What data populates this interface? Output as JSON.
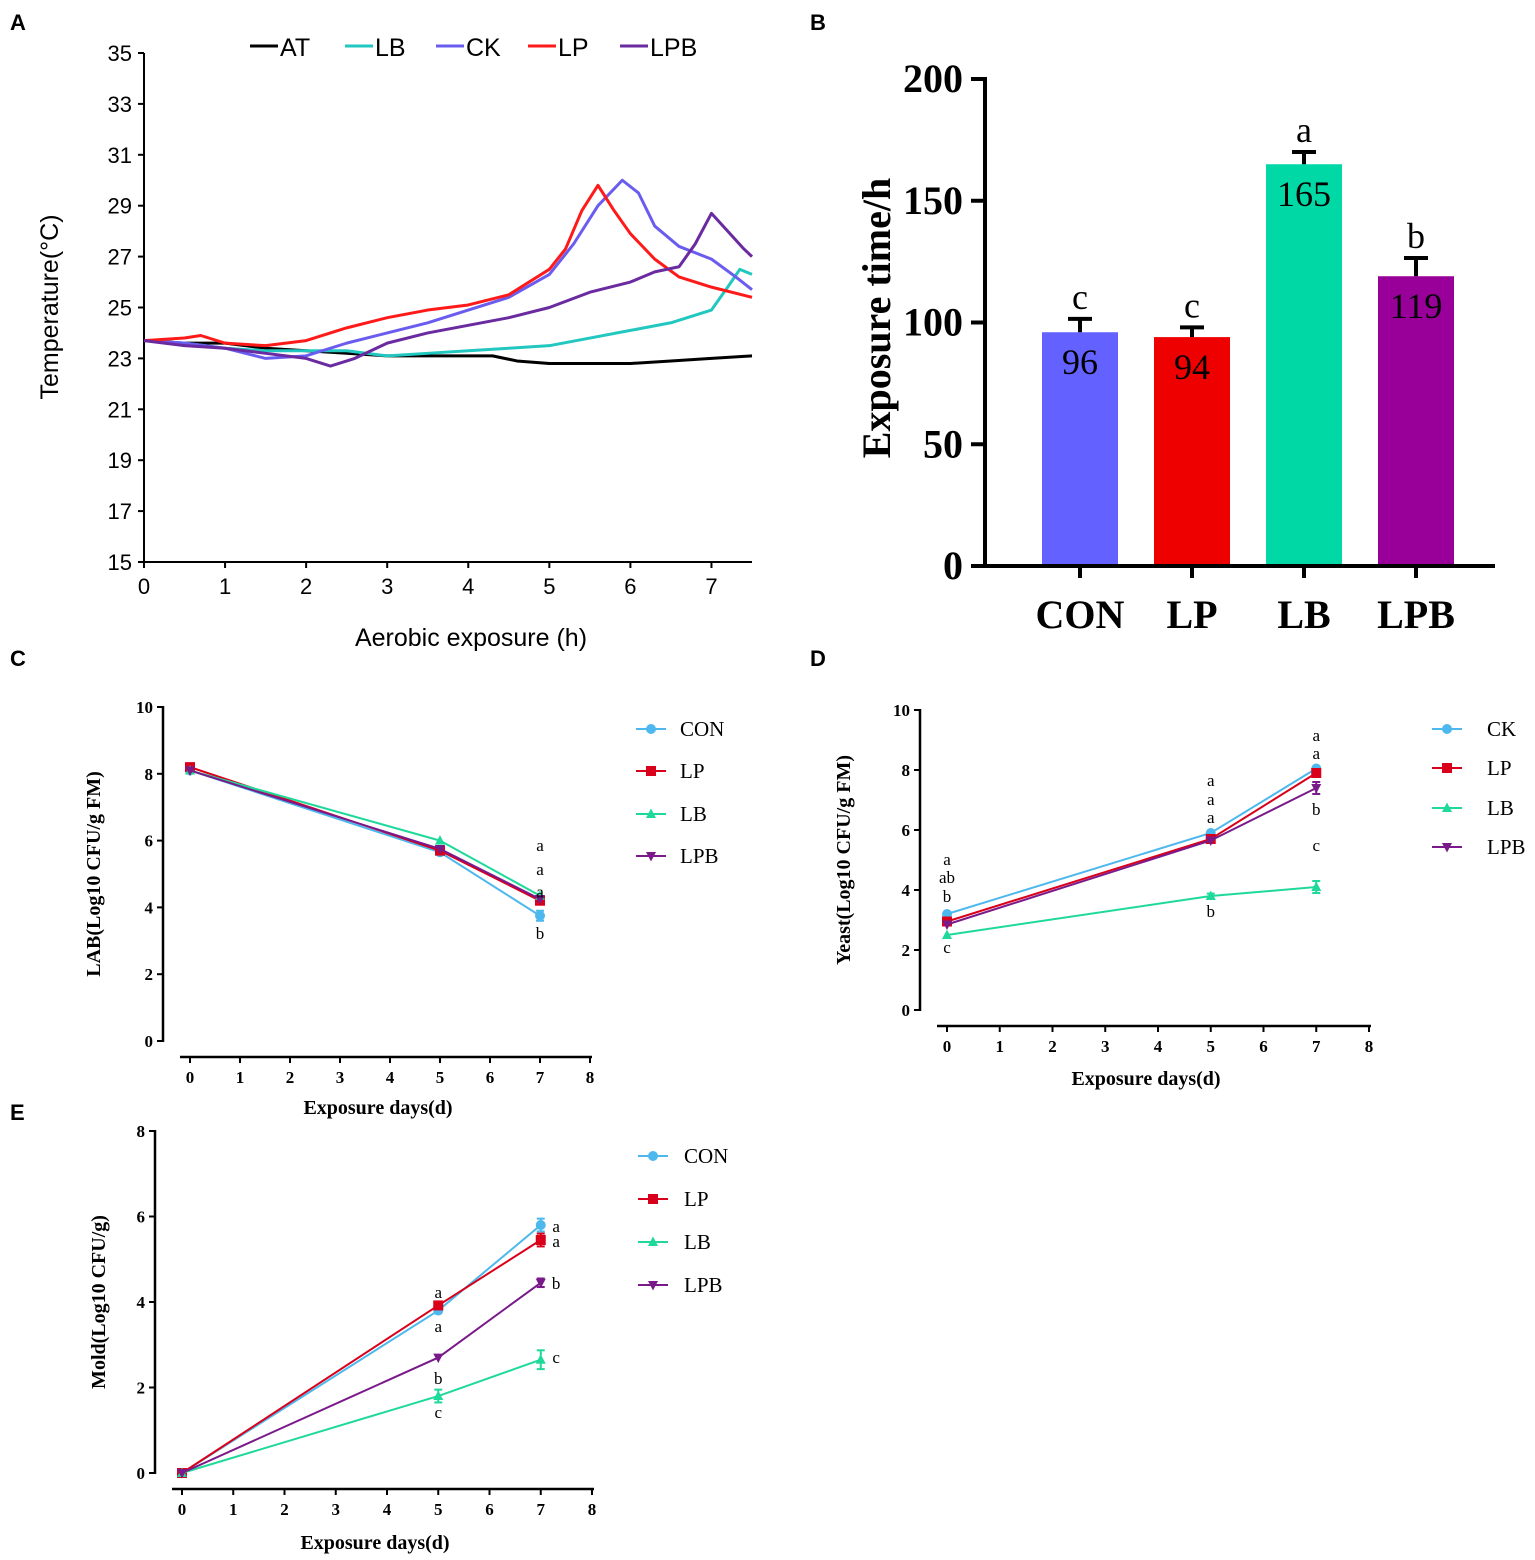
{
  "chart_data": [
    {
      "panel": "A",
      "type": "line",
      "xlabel": "Aerobic exposure (h)",
      "ylabel": "Temperature(°C)",
      "xlim": [
        0,
        7.5
      ],
      "ylim": [
        15,
        35
      ],
      "xticks": [
        0,
        1,
        2,
        3,
        4,
        5,
        6,
        7
      ],
      "yticks": [
        15,
        17,
        19,
        21,
        23,
        25,
        27,
        29,
        31,
        33,
        35
      ],
      "legend_position": "top",
      "grid": false,
      "series": [
        {
          "name": "AT",
          "color": "#000000",
          "x": [
            0,
            0.5,
            1,
            1.5,
            2,
            2.5,
            3,
            3.5,
            4,
            4.3,
            4.6,
            5,
            5.5,
            6,
            6.5,
            7,
            7.5
          ],
          "y": [
            23.7,
            23.6,
            23.6,
            23.4,
            23.3,
            23.2,
            23.1,
            23.1,
            23.1,
            23.1,
            22.9,
            22.8,
            22.8,
            22.8,
            22.9,
            23.0,
            23.1
          ]
        },
        {
          "name": "LB",
          "color": "#22c8c0",
          "x": [
            0,
            0.5,
            1,
            1.5,
            2,
            2.5,
            3,
            3.5,
            4,
            4.5,
            5,
            5.5,
            6,
            6.5,
            7,
            7.2,
            7.35,
            7.5
          ],
          "y": [
            23.7,
            23.6,
            23.4,
            23.3,
            23.3,
            23.3,
            23.1,
            23.2,
            23.3,
            23.4,
            23.5,
            23.8,
            24.1,
            24.4,
            24.9,
            25.8,
            26.5,
            26.3
          ]
        },
        {
          "name": "CK",
          "color": "#6b5cf0",
          "x": [
            0,
            0.5,
            1,
            1.5,
            2,
            2.5,
            3,
            3.5,
            4,
            4.5,
            5,
            5.3,
            5.6,
            5.9,
            6.1,
            6.3,
            6.6,
            7,
            7.3,
            7.5
          ],
          "y": [
            23.7,
            23.6,
            23.4,
            23.0,
            23.1,
            23.6,
            24.0,
            24.4,
            24.9,
            25.4,
            26.3,
            27.5,
            29.0,
            30.0,
            29.5,
            28.2,
            27.4,
            26.9,
            26.2,
            25.7
          ]
        },
        {
          "name": "LP",
          "color": "#ff1a1a",
          "x": [
            0,
            0.5,
            0.7,
            1,
            1.5,
            2,
            2.5,
            3,
            3.5,
            4,
            4.5,
            5,
            5.2,
            5.4,
            5.6,
            5.8,
            6,
            6.3,
            6.6,
            7,
            7.5
          ],
          "y": [
            23.7,
            23.8,
            23.9,
            23.6,
            23.5,
            23.7,
            24.2,
            24.6,
            24.9,
            25.1,
            25.5,
            26.5,
            27.3,
            28.8,
            29.8,
            28.8,
            27.9,
            26.9,
            26.2,
            25.8,
            25.4
          ]
        },
        {
          "name": "LPB",
          "color": "#6a2aa0",
          "x": [
            0,
            0.5,
            1,
            1.5,
            2,
            2.3,
            2.6,
            3,
            3.5,
            4,
            4.5,
            5,
            5.5,
            6,
            6.3,
            6.6,
            6.8,
            7,
            7.2,
            7.4,
            7.5
          ],
          "y": [
            23.7,
            23.5,
            23.4,
            23.2,
            23.0,
            22.7,
            23.0,
            23.6,
            24.0,
            24.3,
            24.6,
            25.0,
            25.6,
            26.0,
            26.4,
            26.6,
            27.5,
            28.7,
            28.0,
            27.3,
            27.0
          ]
        }
      ]
    },
    {
      "panel": "B",
      "type": "bar",
      "ylabel": "Exposure time/h",
      "ylim": [
        0,
        200
      ],
      "yticks": [
        0,
        50,
        100,
        150,
        200
      ],
      "categories": [
        "CON",
        "LP",
        "LB",
        "LPB"
      ],
      "values": [
        96,
        94,
        165,
        119
      ],
      "value_labels": [
        "96",
        "94",
        "165",
        "119"
      ],
      "errors": [
        5.5,
        4,
        5,
        7.5
      ],
      "letters": [
        "c",
        "c",
        "a",
        "b"
      ],
      "colors": [
        "#6361ff",
        "#ee0000",
        "#00d9a6",
        "#990099"
      ]
    },
    {
      "panel": "C",
      "type": "line",
      "xlabel": "Exposure days(d)",
      "ylabel": "LAB(Log10 CFU/g FM)",
      "xlim": [
        0,
        8
      ],
      "ylim": [
        0,
        10
      ],
      "xticks": [
        0,
        1,
        2,
        3,
        4,
        5,
        6,
        7,
        8
      ],
      "yticks": [
        0,
        2,
        4,
        6,
        8,
        10
      ],
      "legend_position": "right",
      "series": [
        {
          "name": "CON",
          "color": "#4db8ee",
          "marker": "circle",
          "x": [
            0,
            5,
            7
          ],
          "y": [
            8.1,
            5.65,
            3.75
          ],
          "err": [
            0.05,
            0.05,
            0.15
          ]
        },
        {
          "name": "LP",
          "color": "#d9001b",
          "marker": "square",
          "x": [
            0,
            5,
            7
          ],
          "y": [
            8.2,
            5.7,
            4.2
          ],
          "err": [
            0.05,
            0.05,
            0.08
          ]
        },
        {
          "name": "LB",
          "color": "#1ed99a",
          "marker": "triangle-up",
          "x": [
            0,
            5,
            7
          ],
          "y": [
            8.1,
            6.0,
            4.35
          ],
          "err": [
            0.05,
            0.05,
            0.05
          ]
        },
        {
          "name": "LPB",
          "color": "#7a1a8a",
          "marker": "triangle-down",
          "x": [
            0,
            5,
            7
          ],
          "y": [
            8.1,
            5.75,
            4.25
          ],
          "err": [
            0.05,
            0.05,
            0.05
          ]
        }
      ],
      "annotations": [
        {
          "x": 7,
          "y": 5.84,
          "text": "a"
        },
        {
          "x": 7,
          "y": 5.12,
          "text": "a"
        },
        {
          "x": 7,
          "y": 4.45,
          "text": "a"
        },
        {
          "x": 7,
          "y": 3.2,
          "text": "b"
        }
      ]
    },
    {
      "panel": "D",
      "type": "line",
      "xlabel": "Exposure days(d)",
      "ylabel": "Yeast(Log10 CFU/g FM)",
      "xlim": [
        0,
        8
      ],
      "ylim": [
        0,
        10
      ],
      "xticks": [
        0,
        1,
        2,
        3,
        4,
        5,
        6,
        7,
        8
      ],
      "yticks": [
        0,
        2,
        4,
        6,
        8,
        10
      ],
      "legend_position": "right",
      "series": [
        {
          "name": "CK",
          "color": "#4db8ee",
          "marker": "circle",
          "x": [
            0,
            5,
            7
          ],
          "y": [
            3.2,
            5.9,
            8.05
          ],
          "err": [
            0.05,
            0.05,
            0.05
          ]
        },
        {
          "name": "LP",
          "color": "#d9001b",
          "marker": "square",
          "x": [
            0,
            5,
            7
          ],
          "y": [
            2.95,
            5.7,
            7.9
          ],
          "err": [
            0.05,
            0.05,
            0.08
          ]
        },
        {
          "name": "LB",
          "color": "#1ed99a",
          "marker": "triangle-up",
          "x": [
            0,
            5,
            7
          ],
          "y": [
            2.5,
            3.8,
            4.1
          ],
          "err": [
            0.05,
            0.08,
            0.2
          ]
        },
        {
          "name": "LPB",
          "color": "#7a1a8a",
          "marker": "triangle-down",
          "x": [
            0,
            5,
            7
          ],
          "y": [
            2.85,
            5.65,
            7.4
          ],
          "err": [
            0.05,
            0.05,
            0.2
          ]
        }
      ],
      "annotations": [
        {
          "x": 0,
          "y": 5.0,
          "text": "a"
        },
        {
          "x": 0,
          "y": 4.4,
          "text": "ab"
        },
        {
          "x": 0,
          "y": 3.77,
          "text": "b"
        },
        {
          "x": 0,
          "y": 2.07,
          "text": "c"
        },
        {
          "x": 5,
          "y": 7.63,
          "text": "a"
        },
        {
          "x": 5,
          "y": 7.0,
          "text": "a"
        },
        {
          "x": 5,
          "y": 6.4,
          "text": "a"
        },
        {
          "x": 5,
          "y": 3.27,
          "text": "b"
        },
        {
          "x": 7,
          "y": 9.13,
          "text": "a"
        },
        {
          "x": 7,
          "y": 8.53,
          "text": "a"
        },
        {
          "x": 7,
          "y": 6.67,
          "text": "b"
        },
        {
          "x": 7,
          "y": 5.47,
          "text": "c"
        }
      ]
    },
    {
      "panel": "E",
      "type": "line",
      "xlabel": "Exposure days(d)",
      "ylabel": "Mold(Log10 CFU/g)",
      "xlim": [
        0,
        8
      ],
      "ylim": [
        0,
        8
      ],
      "xticks": [
        0,
        1,
        2,
        3,
        4,
        5,
        6,
        7,
        8
      ],
      "yticks": [
        0,
        2,
        4,
        6,
        8
      ],
      "legend_position": "right",
      "series": [
        {
          "name": "CON",
          "color": "#4db8ee",
          "marker": "circle",
          "x": [
            0,
            5,
            7
          ],
          "y": [
            0,
            3.8,
            5.8
          ],
          "err": [
            0,
            0.05,
            0.15
          ]
        },
        {
          "name": "LP",
          "color": "#d9001b",
          "marker": "square",
          "x": [
            0,
            5,
            7
          ],
          "y": [
            0,
            3.92,
            5.45
          ],
          "err": [
            0,
            0.05,
            0.15
          ]
        },
        {
          "name": "LB",
          "color": "#1ed99a",
          "marker": "triangle-up",
          "x": [
            0,
            5,
            7
          ],
          "y": [
            0,
            1.8,
            2.65
          ],
          "err": [
            0,
            0.15,
            0.22
          ]
        },
        {
          "name": "LPB",
          "color": "#7a1a8a",
          "marker": "triangle-down",
          "x": [
            0,
            5,
            7
          ],
          "y": [
            0,
            2.7,
            4.45
          ],
          "err": [
            0,
            0.05,
            0.1
          ]
        }
      ],
      "annotations": [
        {
          "x": 5,
          "y": 4.21,
          "text": "a"
        },
        {
          "x": 5,
          "y": 3.41,
          "text": "a"
        },
        {
          "x": 5,
          "y": 2.2,
          "text": "b"
        },
        {
          "x": 5,
          "y": 1.4,
          "text": "c"
        },
        {
          "x": 7.3,
          "y": 5.75,
          "text": "a"
        },
        {
          "x": 7.3,
          "y": 5.4,
          "text": "a"
        },
        {
          "x": 7.3,
          "y": 4.42,
          "text": "b"
        },
        {
          "x": 7.3,
          "y": 2.69,
          "text": "c"
        }
      ]
    }
  ]
}
